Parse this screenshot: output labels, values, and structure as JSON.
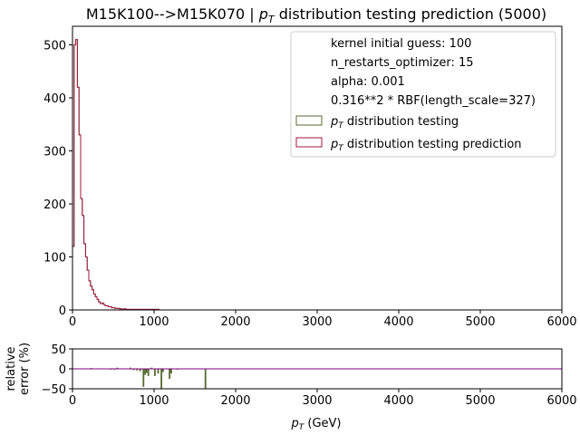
{
  "chart_data": {
    "type": "histogram",
    "title_prefix": "M15K100-->M15K070 | ",
    "title_pt": "p",
    "title_pt_sub": "T",
    "title_suffix": " distribution testing prediction (5000)",
    "colors": {
      "testing": "#556b2f",
      "prediction": "#a0153e",
      "error_line": "#800080"
    },
    "main": {
      "xlim": [
        0,
        6000
      ],
      "ylim": [
        0,
        535
      ],
      "xticks": [
        0,
        1000,
        2000,
        3000,
        4000,
        5000,
        6000
      ],
      "yticks": [
        0,
        100,
        200,
        300,
        400,
        500
      ],
      "bin_width": 20,
      "bin_start": 0,
      "prediction_values": [
        120,
        500,
        510,
        420,
        330,
        210,
        178,
        125,
        100,
        75,
        55,
        45,
        38,
        30,
        25,
        20,
        15,
        12,
        13,
        10,
        8,
        8,
        6,
        6,
        4,
        4,
        3,
        3,
        3,
        2,
        2,
        2,
        2,
        1,
        1,
        1,
        1,
        1,
        1,
        1,
        1,
        1,
        1,
        1,
        1,
        1,
        1,
        1,
        1,
        1,
        1,
        1,
        1
      ],
      "testing_values": [
        120,
        500,
        510,
        420,
        330,
        210,
        178,
        125,
        100,
        75,
        55,
        45,
        38,
        30,
        25,
        20,
        15,
        12,
        13,
        10,
        8,
        8,
        6,
        6,
        4,
        4,
        3,
        3,
        3,
        2,
        2,
        2,
        2,
        1,
        1,
        1,
        1,
        1,
        1,
        1,
        1,
        1,
        1,
        1,
        1,
        1,
        1,
        1,
        1,
        1,
        1,
        1,
        1
      ]
    },
    "legend": {
      "placement": "top-right",
      "text_lines": [
        "kernel initial guess: 100",
        "n_restarts_optimizer: 15",
        "alpha: 0.001",
        "0.316**2 * RBF(length_scale=327)"
      ],
      "entries": [
        {
          "pre": "p",
          "sub": "T",
          "post": " distribution testing",
          "series": "testing"
        },
        {
          "pre": "p",
          "sub": "T",
          "post": " distribution testing prediction",
          "series": "prediction"
        }
      ]
    },
    "ratio": {
      "ylabel_line1": "relative",
      "ylabel_line2": "error (%)",
      "xlabel_pre": "p",
      "xlabel_sub": "T",
      "xlabel_post": " (GeV)",
      "xlim": [
        0,
        6000
      ],
      "ylim": [
        -50,
        50
      ],
      "yticks": [
        -50,
        0,
        50
      ],
      "xticks": [
        0,
        1000,
        2000,
        3000,
        4000,
        5000,
        6000
      ],
      "bin_width": 20,
      "errors": [
        {
          "x": 220,
          "v": 2
        },
        {
          "x": 460,
          "v": -2
        },
        {
          "x": 500,
          "v": -2
        },
        {
          "x": 540,
          "v": 3
        },
        {
          "x": 700,
          "v": 3
        },
        {
          "x": 740,
          "v": -3
        },
        {
          "x": 780,
          "v": -4
        },
        {
          "x": 820,
          "v": -6
        },
        {
          "x": 860,
          "v": -45
        },
        {
          "x": 880,
          "v": -15
        },
        {
          "x": 900,
          "v": -10
        },
        {
          "x": 920,
          "v": -18
        },
        {
          "x": 960,
          "v": 3
        },
        {
          "x": 1000,
          "v": -18
        },
        {
          "x": 1040,
          "v": -12
        },
        {
          "x": 1080,
          "v": -50
        },
        {
          "x": 1100,
          "v": -8
        },
        {
          "x": 1180,
          "v": -25
        },
        {
          "x": 1200,
          "v": -12
        },
        {
          "x": 1280,
          "v": -2
        },
        {
          "x": 1620,
          "v": -50
        }
      ]
    }
  }
}
